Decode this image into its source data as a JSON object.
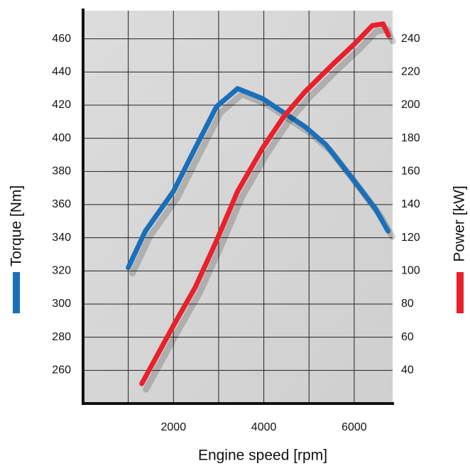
{
  "chart_data": {
    "type": "line",
    "x_label": "Engine speed [rpm]",
    "y_label": "Torque [Nm]",
    "y2_label": "Power [kW]",
    "xlim": [
      0,
      6850
    ],
    "xticks": [
      2000,
      4000,
      6000
    ],
    "x_grid": [
      1000,
      2000,
      3000,
      4000,
      5000,
      6000
    ],
    "ylim": [
      240,
      477
    ],
    "yticks": [
      260,
      280,
      300,
      320,
      340,
      360,
      380,
      400,
      420,
      440,
      460
    ],
    "y2lim": [
      20,
      257
    ],
    "y2ticks": [
      40,
      60,
      80,
      100,
      120,
      140,
      160,
      180,
      200,
      220,
      240
    ],
    "grid": true,
    "series": [
      {
        "name": "Torque [Nm]",
        "color": "#1a6fba",
        "axis": "y",
        "x": [
          1000,
          1380,
          2000,
          2480,
          2950,
          3420,
          3970,
          4910,
          5380,
          6010,
          6480,
          6750
        ],
        "values": [
          322,
          344,
          368,
          394,
          419,
          430,
          424,
          407,
          396,
          374,
          357,
          344
        ]
      },
      {
        "name": "Power [kW]",
        "color": "#e8212b",
        "axis": "y2",
        "x": [
          1300,
          2000,
          2480,
          2950,
          3420,
          3970,
          4440,
          4910,
          5540,
          6010,
          6400,
          6640,
          6760
        ],
        "values": [
          32,
          67,
          90,
          118,
          148,
          174,
          193,
          208,
          225,
          237,
          248,
          249,
          242
        ]
      }
    ]
  }
}
